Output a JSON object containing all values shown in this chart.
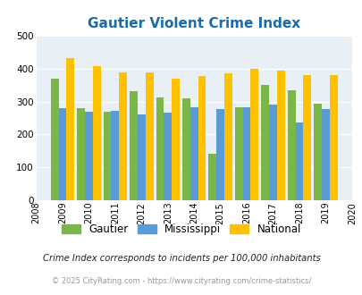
{
  "title": "Gautier Violent Crime Index",
  "years": [
    2009,
    2010,
    2011,
    2012,
    2013,
    2014,
    2015,
    2016,
    2017,
    2018,
    2019
  ],
  "gautier": [
    370,
    280,
    268,
    330,
    312,
    310,
    143,
    282,
    350,
    335,
    292
  ],
  "mississippi": [
    280,
    270,
    272,
    262,
    267,
    282,
    278,
    282,
    290,
    236,
    278
  ],
  "national": [
    432,
    406,
    388,
    388,
    368,
    378,
    384,
    398,
    394,
    381,
    380
  ],
  "gautier_color": "#7ab648",
  "mississippi_color": "#5b9bd5",
  "national_color": "#ffc000",
  "bg_color": "#e8f0f5",
  "title_color": "#1a6ca8",
  "xlim": [
    2008,
    2020
  ],
  "ylim": [
    0,
    500
  ],
  "yticks": [
    0,
    100,
    200,
    300,
    400,
    500
  ],
  "footnote1": "Crime Index corresponds to incidents per 100,000 inhabitants",
  "footnote2": "© 2025 CityRating.com - https://www.cityrating.com/crime-statistics/",
  "bar_width": 0.3
}
